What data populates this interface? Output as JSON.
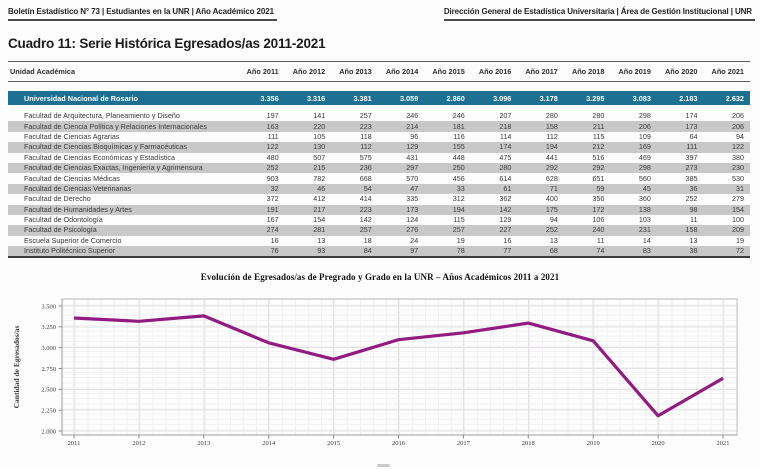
{
  "page": {
    "header_left": "Boletín Estadístico N° 73 | Estudiantes en la UNR | Año Académico 2021",
    "header_right": "Dirección General de Estadística Universitaria | Área de Gestión Institucional | UNR",
    "title": "Cuadro 11: Serie Histórica Egresados/as 2011-2021"
  },
  "table": {
    "unit_column_header": "Unidad Académica",
    "year_headers": [
      "Año 2011",
      "Año 2012",
      "Año 2013",
      "Año 2014",
      "Año 2015",
      "Año 2016",
      "Año 2017",
      "Año 2018",
      "Año 2019",
      "Año 2020",
      "Año 2021"
    ],
    "total_row": {
      "label": "Universidad Nacional de Rosario",
      "values": [
        "3.356",
        "3.316",
        "3.381",
        "3.059",
        "2.860",
        "3.096",
        "3.178",
        "3.295",
        "3.083",
        "2.183",
        "2.632"
      ]
    },
    "rows": [
      {
        "label": "Facultad de Arquitectura, Planeamiento y Diseño",
        "values": [
          197,
          141,
          257,
          246,
          246,
          207,
          280,
          280,
          298,
          174,
          206
        ]
      },
      {
        "label": "Facultad de Ciencia Política y Relaciones Internacionales",
        "values": [
          163,
          220,
          223,
          214,
          181,
          218,
          158,
          211,
          206,
          173,
          206
        ]
      },
      {
        "label": "Facultad de Ciencias Agrarias",
        "values": [
          111,
          105,
          118,
          96,
          116,
          114,
          112,
          115,
          109,
          64,
          94
        ]
      },
      {
        "label": "Facultad de Ciencias Bioquímicas y Farmacéuticas",
        "values": [
          122,
          130,
          112,
          129,
          155,
          174,
          194,
          212,
          169,
          111,
          122
        ]
      },
      {
        "label": "Facultad de Ciencias Económicas y Estadística",
        "values": [
          480,
          507,
          575,
          431,
          448,
          475,
          441,
          516,
          469,
          397,
          380
        ]
      },
      {
        "label": "Facultad de Ciencias Exactas, Ingeniería y Agrimensura",
        "values": [
          252,
          215,
          236,
          297,
          250,
          280,
          292,
          292,
          298,
          273,
          230
        ]
      },
      {
        "label": "Facultad de Ciencias Médicas",
        "values": [
          903,
          782,
          668,
          570,
          456,
          614,
          628,
          651,
          560,
          385,
          530
        ]
      },
      {
        "label": "Facultad de Ciencias Veterinarias",
        "values": [
          32,
          46,
          54,
          47,
          33,
          61,
          71,
          59,
          45,
          36,
          31
        ]
      },
      {
        "label": "Facultad de Derecho",
        "values": [
          372,
          412,
          414,
          335,
          312,
          362,
          400,
          356,
          360,
          252,
          279
        ]
      },
      {
        "label": "Facultad de Humanidades y Artes",
        "values": [
          191,
          217,
          223,
          173,
          194,
          142,
          175,
          172,
          138,
          98,
          154
        ]
      },
      {
        "label": "Facultad de Odontología",
        "values": [
          167,
          154,
          142,
          124,
          115,
          129,
          94,
          106,
          103,
          11,
          100
        ]
      },
      {
        "label": "Facultad de Psicología",
        "values": [
          274,
          281,
          257,
          276,
          257,
          227,
          252,
          240,
          231,
          158,
          209
        ]
      },
      {
        "label": "Escuela Superior de Comercio",
        "values": [
          16,
          13,
          18,
          24,
          19,
          16,
          13,
          11,
          14,
          13,
          19
        ]
      },
      {
        "label": "Instituto Politécnico Superior",
        "values": [
          76,
          93,
          84,
          97,
          78,
          77,
          68,
          74,
          83,
          38,
          72
        ]
      }
    ]
  },
  "chart_data": {
    "type": "line",
    "title": "Evolución de Egresados/as de Pregrado y Grado en la UNR – Años Académicos 2011 a 2021",
    "xlabel": "",
    "ylabel": "Cantidad de Egresados/as",
    "x": [
      2011,
      2012,
      2013,
      2014,
      2015,
      2016,
      2017,
      2018,
      2019,
      2020,
      2021
    ],
    "series": [
      {
        "values": [
          3356,
          3316,
          3381,
          3059,
          2860,
          3096,
          3178,
          3295,
          3083,
          2183,
          2632
        ]
      }
    ],
    "ylim": [
      2000,
      3500
    ],
    "ytick_step": 250,
    "ytick_labels": [
      "2.000",
      "2.250",
      "2.500",
      "2.750",
      "3.000",
      "3.250",
      "3.500"
    ],
    "grid": true,
    "legend_position": "none"
  },
  "colors": {
    "total_row_bg": "#1E7093",
    "zebra_bg": "#C8C8C8",
    "line": "#911B80",
    "grid_major": "#e4e1e4",
    "grid_minor": "#f3f1f3",
    "plot_border": "#bdbdbd"
  }
}
